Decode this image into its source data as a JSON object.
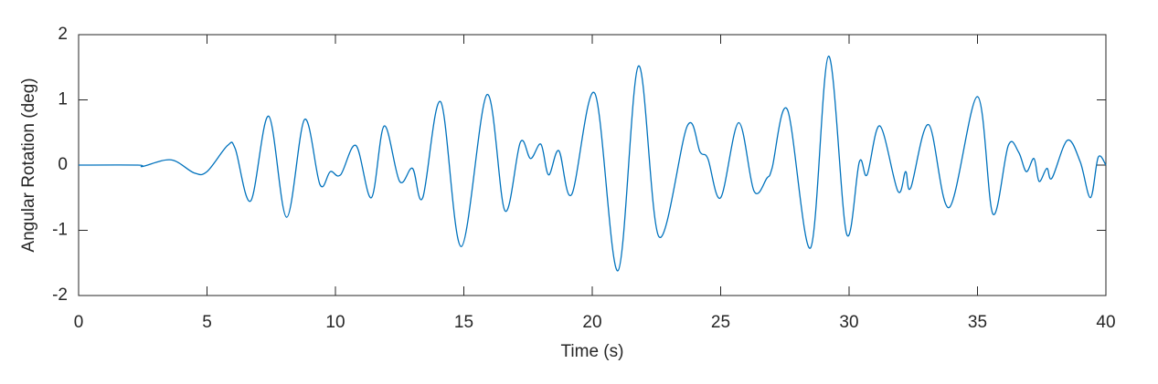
{
  "chart_data": {
    "type": "line",
    "xlabel": "Time (s)",
    "ylabel": "Angular Rotation (deg)",
    "x": [
      0,
      2.3,
      2.5,
      3.6,
      4.5,
      5,
      5.8,
      6.1,
      6.7,
      7.4,
      8.1,
      8.8,
      9.4,
      9.8,
      10.2,
      10.8,
      11.4,
      11.9,
      12.5,
      13,
      13.4,
      14.1,
      14.9,
      15.9,
      16.6,
      17.2,
      17.6,
      18,
      18.3,
      18.7,
      19.2,
      20.1,
      21,
      21.8,
      22.6,
      23.7,
      24.2,
      24.5,
      25,
      25.7,
      26.3,
      26.8,
      27,
      27.6,
      28.5,
      29.2,
      29.9,
      30.4,
      30.7,
      31.2,
      31.9,
      32.2,
      32.4,
      33.1,
      33.9,
      35,
      35.6,
      36.2,
      36.6,
      36.9,
      37.2,
      37.4,
      37.7,
      37.9,
      38.5,
      39,
      39.4,
      39.7,
      40
    ],
    "values": [
      0,
      0,
      -0.02,
      0.08,
      -0.12,
      -0.1,
      0.3,
      0.25,
      -0.55,
      0.75,
      -0.8,
      0.7,
      -0.3,
      -0.1,
      -0.15,
      0.3,
      -0.5,
      0.6,
      -0.25,
      -0.05,
      -0.5,
      0.97,
      -1.25,
      1.08,
      -0.7,
      0.35,
      0.1,
      0.32,
      -0.15,
      0.22,
      -0.45,
      1.1,
      -1.62,
      1.52,
      -1.1,
      0.6,
      0.2,
      0.1,
      -0.5,
      0.65,
      -0.4,
      -0.2,
      -0.05,
      0.85,
      -1.27,
      1.67,
      -1.05,
      0.05,
      -0.15,
      0.6,
      -0.4,
      -0.1,
      -0.35,
      0.62,
      -0.65,
      1.05,
      -0.75,
      0.3,
      0.2,
      -0.1,
      0.1,
      -0.25,
      -0.05,
      -0.2,
      0.38,
      0.05,
      -0.5,
      0.12,
      0
    ],
    "color": "#0072bd",
    "xlim": [
      0,
      40
    ],
    "xticks": [
      0,
      5,
      10,
      15,
      20,
      25,
      30,
      35,
      40
    ],
    "ylim": [
      -2,
      2
    ],
    "yticks": [
      -2,
      -1,
      0,
      1,
      2
    ]
  }
}
